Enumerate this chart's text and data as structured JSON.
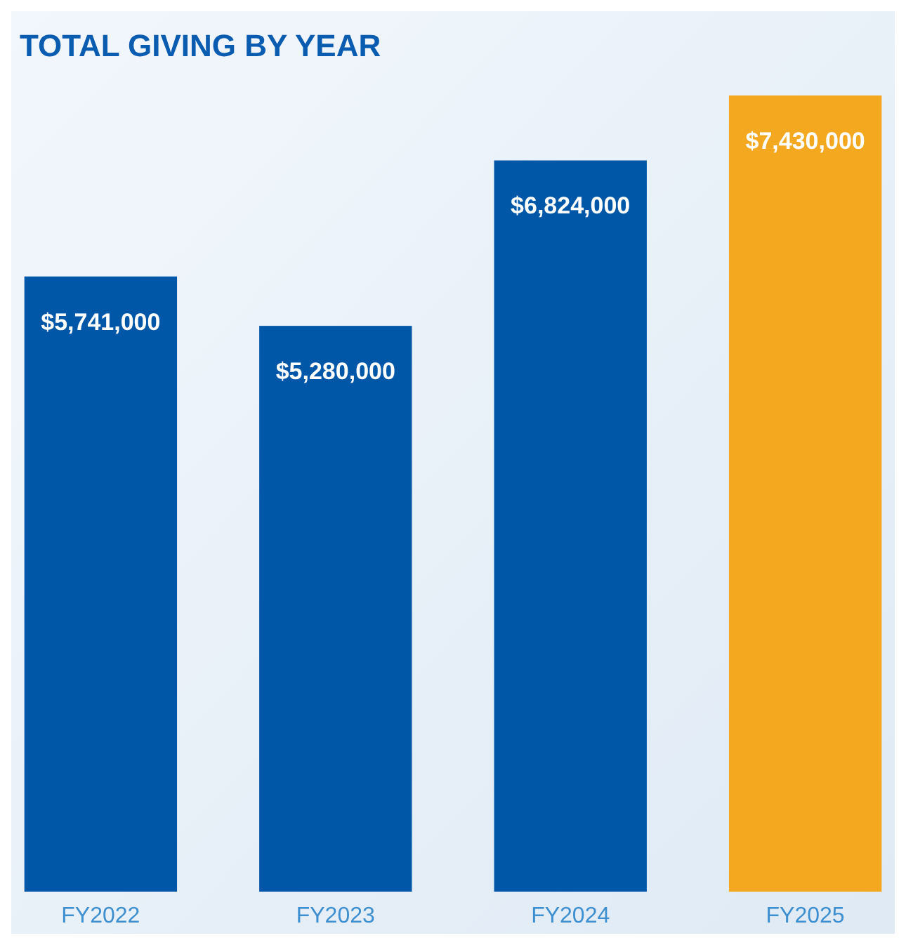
{
  "chart_data": {
    "type": "bar",
    "title": "TOTAL GIVING BY YEAR",
    "categories": [
      "FY2022",
      "FY2023",
      "FY2024",
      "FY2025"
    ],
    "values": [
      5741000,
      5280000,
      6824000,
      7430000
    ],
    "colors": [
      "#0057a8",
      "#0057a8",
      "#0057a8",
      "#f4a81f"
    ],
    "value_labels": [
      "$5,741,000",
      "$5,280,000",
      "$6,824,000",
      "$7,430,000"
    ]
  }
}
